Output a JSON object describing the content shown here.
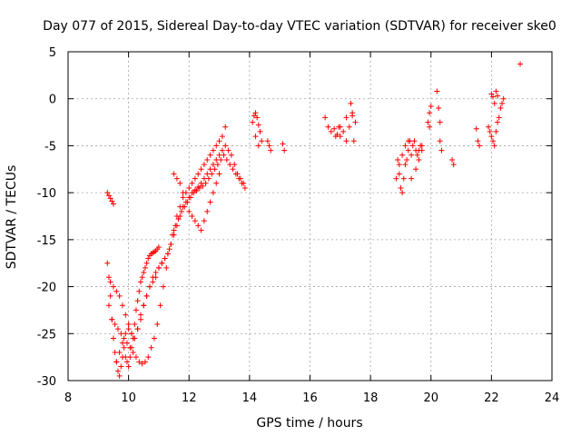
{
  "chart_data": {
    "type": "scatter",
    "title": "Day 077 of 2015, Sidereal Day-to-day VTEC variation (SDTVAR) for receiver ske0",
    "xlabel": "GPS time / hours",
    "ylabel": "SDTVAR / TECUs",
    "xlim": [
      8,
      24
    ],
    "ylim": [
      -30,
      5
    ],
    "xticks": [
      8,
      10,
      12,
      14,
      16,
      18,
      20,
      22,
      24
    ],
    "yticks": [
      5,
      0,
      -5,
      -10,
      -15,
      -20,
      -25,
      -30
    ],
    "grid": true,
    "marker": "plus",
    "color": "#ff0000",
    "series": [
      {
        "name": "SDTVAR",
        "x": [
          9.3,
          9.35,
          9.4,
          9.45,
          9.5,
          9.3,
          9.35,
          9.4,
          9.45,
          9.5,
          9.55,
          9.6,
          9.65,
          9.7,
          9.75,
          9.8,
          9.85,
          9.9,
          9.95,
          10.0,
          10.05,
          10.1,
          10.15,
          10.2,
          10.25,
          10.3,
          10.35,
          10.4,
          10.45,
          10.5,
          10.55,
          10.6,
          10.65,
          10.7,
          10.75,
          10.8,
          10.85,
          10.9,
          10.95,
          11.0,
          9.35,
          9.45,
          9.55,
          9.65,
          9.75,
          9.85,
          9.95,
          10.05,
          10.15,
          10.25,
          10.35,
          10.45,
          10.55,
          10.65,
          10.75,
          10.85,
          10.95,
          11.05,
          11.15,
          11.25,
          11.35,
          11.45,
          11.55,
          11.65,
          11.75,
          11.85,
          11.95,
          12.05,
          12.15,
          12.25,
          12.35,
          12.45,
          12.55,
          12.65,
          12.75,
          12.85,
          12.95,
          13.05,
          13.15,
          13.25,
          13.35,
          13.45,
          13.55,
          13.65,
          13.75,
          13.85,
          9.4,
          9.5,
          9.6,
          9.7,
          9.8,
          9.9,
          10.0,
          10.1,
          10.2,
          10.3,
          10.4,
          10.5,
          10.6,
          10.7,
          10.8,
          10.9,
          11.0,
          11.1,
          11.2,
          11.3,
          11.4,
          11.5,
          11.6,
          11.7,
          11.8,
          11.9,
          12.0,
          12.1,
          12.2,
          12.3,
          12.4,
          12.5,
          12.6,
          12.7,
          12.8,
          12.9,
          13.0,
          13.1,
          13.2,
          9.6,
          9.7,
          9.8,
          9.9,
          10.0,
          10.1,
          10.2,
          10.3,
          10.4,
          10.5,
          10.6,
          10.7,
          10.8,
          10.9,
          11.0,
          11.1,
          11.2,
          11.3,
          11.4,
          11.5,
          11.6,
          11.7,
          11.8,
          11.9,
          12.0,
          12.1,
          12.2,
          12.3,
          12.4,
          12.5,
          12.6,
          12.7,
          12.8,
          12.9,
          13.0,
          13.1,
          13.2,
          13.3,
          13.4,
          13.5,
          13.6,
          13.7,
          13.8,
          11.5,
          11.6,
          11.7,
          11.8,
          11.9,
          12.0,
          12.1,
          12.2,
          12.3,
          12.4,
          12.5,
          12.6,
          12.7,
          12.8,
          12.9,
          13.0,
          14.1,
          14.15,
          14.2,
          14.25,
          14.3,
          14.35,
          14.4,
          14.2,
          14.3,
          14.6,
          14.65,
          14.7,
          15.1,
          15.15,
          16.5,
          16.6,
          16.7,
          16.8,
          16.9,
          17.0,
          17.1,
          17.2,
          17.3,
          17.4,
          17.5,
          17.35,
          17.4,
          17.45,
          17.0,
          17.2,
          16.85,
          16.95,
          18.9,
          18.95,
          19.0,
          19.05,
          19.1,
          19.15,
          19.2,
          19.25,
          19.3,
          19.35,
          19.4,
          19.45,
          19.5,
          19.55,
          19.6,
          19.65,
          19.7,
          18.85,
          18.95,
          19.05,
          19.15,
          19.25,
          19.35,
          19.5,
          19.6,
          19.7,
          19.9,
          19.95,
          20.0,
          19.95,
          20.2,
          20.25,
          20.3,
          20.3,
          20.35,
          20.7,
          20.75,
          21.5,
          21.55,
          21.6,
          21.9,
          21.95,
          22.0,
          22.05,
          22.1,
          22.15,
          22.2,
          22.25,
          22.3,
          22.35,
          22.4,
          22.0,
          22.05,
          22.1,
          22.15,
          22.2,
          22.95
        ],
        "y": [
          -10.0,
          -10.3,
          -10.6,
          -10.9,
          -11.2,
          -17.5,
          -19.0,
          -21.0,
          -23.5,
          -25.5,
          -27.0,
          -28.0,
          -29.0,
          -29.5,
          -28.5,
          -27.5,
          -26.5,
          -27.5,
          -28.0,
          -28.5,
          -27.5,
          -26.5,
          -25.5,
          -24.0,
          -22.5,
          -21.5,
          -20.5,
          -19.5,
          -19.0,
          -18.5,
          -18.0,
          -17.5,
          -17.0,
          -16.7,
          -16.5,
          -16.4,
          -16.3,
          -16.2,
          -16.0,
          -15.8,
          -22.0,
          -23.5,
          -24.0,
          -24.5,
          -25.0,
          -25.5,
          -26.0,
          -26.5,
          -27.0,
          -27.5,
          -28.0,
          -28.2,
          -28.0,
          -27.5,
          -26.5,
          -25.5,
          -24.0,
          -22.0,
          -20.0,
          -18.0,
          -16.0,
          -14.5,
          -13.5,
          -12.8,
          -12.0,
          -11.5,
          -11.0,
          -10.5,
          -10.0,
          -9.8,
          -9.5,
          -9.3,
          -9.0,
          -8.5,
          -8.0,
          -7.5,
          -7.0,
          -6.5,
          -6.0,
          -6.5,
          -7.0,
          -7.5,
          -8.0,
          -8.5,
          -9.0,
          -9.5,
          -19.5,
          -20.0,
          -20.5,
          -21.0,
          -22.0,
          -23.0,
          -24.0,
          -25.0,
          -25.5,
          -24.5,
          -23.5,
          -22.0,
          -21.0,
          -20.0,
          -19.5,
          -19.0,
          -18.0,
          -17.5,
          -17.0,
          -16.5,
          -15.5,
          -14.0,
          -12.5,
          -11.5,
          -10.5,
          -10.0,
          -9.5,
          -9.0,
          -8.5,
          -8.0,
          -7.5,
          -7.0,
          -6.5,
          -6.0,
          -5.5,
          -5.0,
          -4.5,
          -4.0,
          -3.0,
          -28.0,
          -27.0,
          -26.0,
          -25.0,
          -24.5,
          -25.0,
          -25.5,
          -24.5,
          -23.0,
          -22.0,
          -21.0,
          -20.0,
          -19.0,
          -18.5,
          -18.0,
          -17.5,
          -17.0,
          -16.5,
          -15.5,
          -14.5,
          -13.5,
          -12.5,
          -11.5,
          -11.0,
          -10.5,
          -10.0,
          -9.7,
          -9.4,
          -9.0,
          -8.5,
          -8.0,
          -7.5,
          -7.0,
          -6.5,
          -6.0,
          -5.5,
          -5.0,
          -5.5,
          -6.0,
          -7.0,
          -8.0,
          -8.5,
          -9.0,
          -8.0,
          -8.5,
          -9.0,
          -10.0,
          -11.0,
          -12.0,
          -12.5,
          -13.0,
          -13.5,
          -14.0,
          -13.0,
          -12.0,
          -11.0,
          -10.0,
          -9.0,
          -8.0,
          -2.5,
          -1.8,
          -1.5,
          -2.0,
          -2.8,
          -3.5,
          -4.5,
          -4.0,
          -5.0,
          -4.5,
          -5.0,
          -5.5,
          -4.8,
          -5.5,
          -2.0,
          -3.0,
          -3.5,
          -3.2,
          -3.8,
          -4.0,
          -3.5,
          -4.5,
          -3.0,
          -1.5,
          -2.5,
          -0.5,
          -1.8,
          -4.5,
          -3.0,
          -2.0,
          -4.0,
          -3.0,
          -6.5,
          -8.0,
          -9.5,
          -10.0,
          -8.5,
          -7.0,
          -6.5,
          -5.5,
          -4.5,
          -6.0,
          -5.0,
          -4.5,
          -5.5,
          -6.0,
          -5.5,
          -5.0,
          -5.0,
          -8.5,
          -7.0,
          -6.0,
          -5.0,
          -4.5,
          -8.5,
          -7.5,
          -6.5,
          -5.5,
          -2.5,
          -1.5,
          -0.8,
          -3.0,
          0.8,
          -1.0,
          -2.5,
          -4.5,
          -5.5,
          -6.5,
          -7.0,
          -3.2,
          -4.5,
          -5.0,
          -3.0,
          -3.5,
          -4.0,
          -4.5,
          -5.0,
          -3.5,
          -2.5,
          -2.0,
          -1.0,
          -0.5,
          0.0,
          0.5,
          0.2,
          -0.5,
          0.8,
          0.3,
          3.7
        ]
      }
    ]
  }
}
